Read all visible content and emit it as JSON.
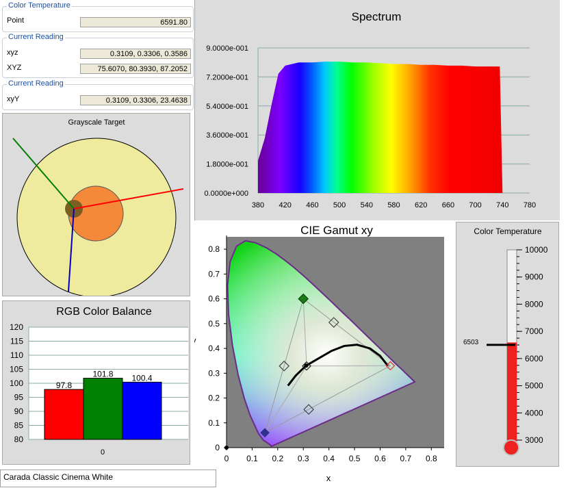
{
  "readings": {
    "color_temp": {
      "title": "Color Temperature",
      "label": "Point",
      "value": "6591.80"
    },
    "current1": {
      "title": "Current Reading",
      "xyz_label": "xyz",
      "xyz_value": "0.3109, 0.3306, 0.3586",
      "XYZ_label": "XYZ",
      "XYZ_value": "75.6070, 80.3930, 87.2052"
    },
    "current2": {
      "title": "Current Reading",
      "label": "xyY",
      "value": "0.3109, 0.3306, 23.4638"
    }
  },
  "grayscale": {
    "title": "Grayscale Target"
  },
  "spectrum": {
    "title": "Spectrum",
    "y_ticks": [
      "0.0000e+000",
      "1.8000e-001",
      "3.6000e-001",
      "5.4000e-001",
      "7.2000e-001",
      "9.0000e-001"
    ],
    "x_ticks": [
      "380",
      "420",
      "460",
      "500",
      "540",
      "580",
      "620",
      "660",
      "700",
      "740",
      "780"
    ]
  },
  "cie": {
    "title": "CIE Gamut xy",
    "xlabel": "x",
    "ylabel": "y",
    "x_ticks": [
      "0",
      "0.1",
      "0.2",
      "0.3",
      "0.4",
      "0.5",
      "0.6",
      "0.7",
      "0.8"
    ],
    "y_ticks": [
      "0",
      "0.1",
      "0.2",
      "0.3",
      "0.4",
      "0.5",
      "0.6",
      "0.7",
      "0.8"
    ]
  },
  "rgb": {
    "title": "RGB Color Balance",
    "category": "0",
    "y_ticks": [
      "80",
      "85",
      "90",
      "95",
      "100",
      "105",
      "110",
      "115",
      "120"
    ]
  },
  "thermo": {
    "title": "Color Temperature",
    "ticks": [
      "3000",
      "4000",
      "5000",
      "6000",
      "7000",
      "8000",
      "9000",
      "10000"
    ],
    "marker_label": "6503",
    "value": 6591.8
  },
  "preset": {
    "value": "Carada Classic Cinema White"
  },
  "chart_data": [
    {
      "type": "area",
      "title": "Spectrum",
      "xlim": [
        380,
        780
      ],
      "ylim": [
        0,
        0.9
      ],
      "x": [
        380,
        390,
        400,
        410,
        420,
        440,
        460,
        480,
        500,
        520,
        540,
        560,
        580,
        600,
        620,
        640,
        660,
        680,
        700,
        720,
        730,
        736,
        740
      ],
      "values": [
        0.2,
        0.34,
        0.55,
        0.74,
        0.79,
        0.81,
        0.81,
        0.815,
        0.815,
        0.81,
        0.81,
        0.805,
        0.8,
        0.8,
        0.795,
        0.795,
        0.79,
        0.79,
        0.785,
        0.785,
        0.785,
        0.785,
        0.0
      ]
    },
    {
      "type": "bar",
      "title": "RGB Color Balance",
      "categories": [
        "0"
      ],
      "ylim": [
        80,
        120
      ],
      "series": [
        {
          "values": [
            97.8
          ],
          "color": "#ff0000"
        },
        {
          "values": [
            101.8
          ],
          "color": "#008000"
        },
        {
          "values": [
            100.4
          ],
          "color": "#0000ff"
        }
      ]
    },
    {
      "type": "scatter",
      "title": "CIE Gamut xy",
      "xlabel": "x",
      "ylabel": "y",
      "xlim": [
        0,
        0.85
      ],
      "ylim": [
        0,
        0.85
      ],
      "target_gamut": [
        [
          0.3,
          0.6
        ],
        [
          0.64,
          0.33
        ],
        [
          0.15,
          0.06
        ]
      ],
      "target_secondaries": [
        [
          0.225,
          0.329
        ],
        [
          0.419,
          0.505
        ],
        [
          0.321,
          0.154
        ]
      ],
      "white_target": [
        0.3127,
        0.329
      ],
      "measured_white": [
        0.3109,
        0.3306
      ]
    }
  ]
}
